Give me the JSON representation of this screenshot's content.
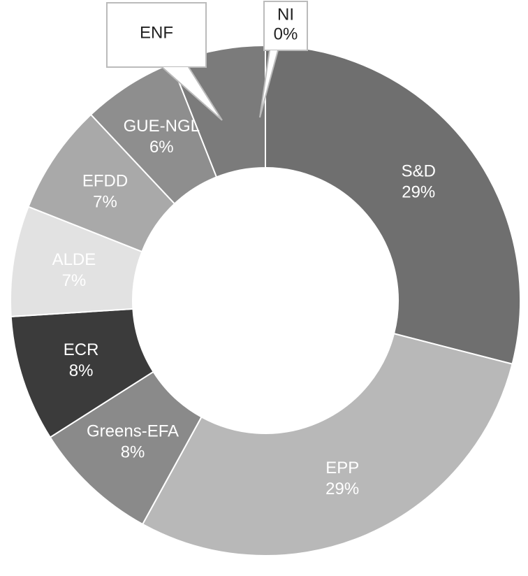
{
  "chart_data": {
    "type": "donut",
    "categories": [
      "S&D",
      "EPP",
      "Greens-EFA",
      "ECR",
      "ALDE",
      "EFDD",
      "GUE-NGL",
      "ENF",
      "NI"
    ],
    "values": [
      29,
      29,
      8,
      8,
      7,
      7,
      6,
      6,
      0
    ],
    "value_labels": [
      "29%",
      "29%",
      "8%",
      "8%",
      "7%",
      "7%",
      "6%",
      null,
      "0%"
    ],
    "colors": [
      "#6f6f6f",
      "#b8b8b8",
      "#8a8a8a",
      "#3b3b3b",
      "#e2e2e2",
      "#a9a9a9",
      "#8e8e8e",
      "#7b7b7b",
      "#cfcfcf"
    ]
  }
}
